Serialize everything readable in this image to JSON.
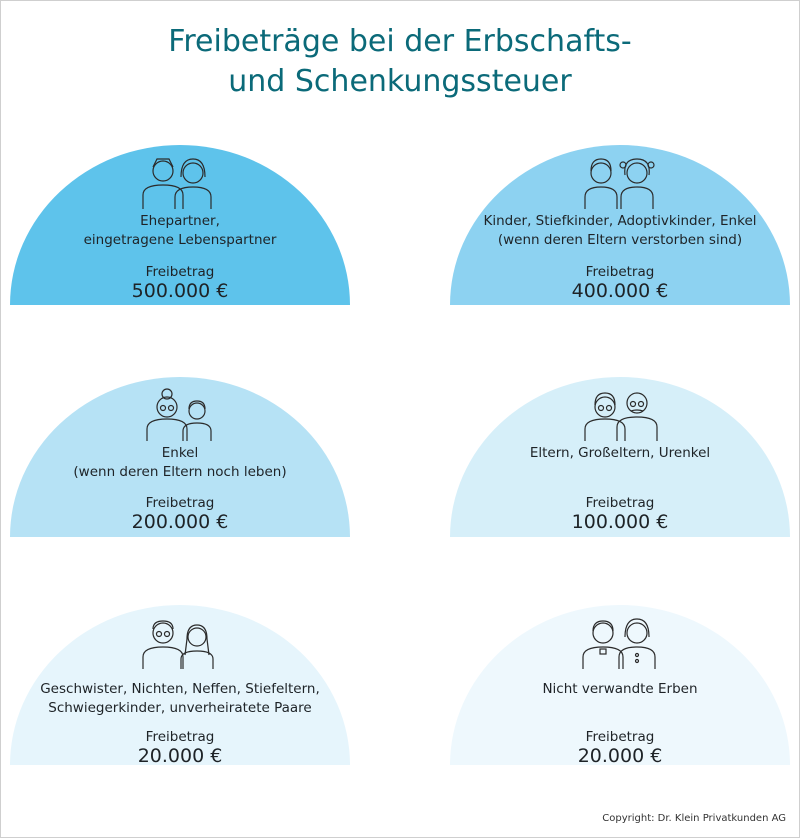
{
  "title": {
    "line1": "Freibeträge bei der Erbschafts-",
    "line2": "und Schenkungssteuer"
  },
  "cards": [
    {
      "label_line1": "Ehepartner,",
      "label_line2": "eingetragene Lebenspartner",
      "freibetrag_label": "Freibetrag",
      "amount": "500.000 €",
      "color": "#5ec3eb",
      "icon": "couple-icon"
    },
    {
      "label_line1": "Kinder, Stiefkinder, Adoptivkinder, Enkel",
      "label_line2": "(wenn deren Eltern verstorben sind)",
      "freibetrag_label": "Freibetrag",
      "amount": "400.000 €",
      "color": "#8dd2f1",
      "icon": "children-icon"
    },
    {
      "label_line1": "Enkel",
      "label_line2": "(wenn deren Eltern noch leben)",
      "freibetrag_label": "Freibetrag",
      "amount": "200.000 €",
      "color": "#b6e2f5",
      "icon": "grandmother-grandchild-icon"
    },
    {
      "label_line1": "Eltern, Großeltern, Urenkel",
      "label_line2": "",
      "freibetrag_label": "Freibetrag",
      "amount": "100.000 €",
      "color": "#d6eff9",
      "icon": "grandparents-icon"
    },
    {
      "label_line1": "Geschwister, Nichten, Neffen, Stiefeltern,",
      "label_line2": "Schwiegerkinder, unverheiratete Paare",
      "freibetrag_label": "Freibetrag",
      "amount": "20.000 €",
      "color": "#e6f5fc",
      "icon": "siblings-icon"
    },
    {
      "label_line1": "Nicht verwandte Erben",
      "label_line2": "",
      "freibetrag_label": "Freibetrag",
      "amount": "20.000 €",
      "color": "#eef8fd",
      "icon": "unrelated-heirs-icon"
    }
  ],
  "copyright": "Copyright: Dr. Klein Privatkunden AG"
}
